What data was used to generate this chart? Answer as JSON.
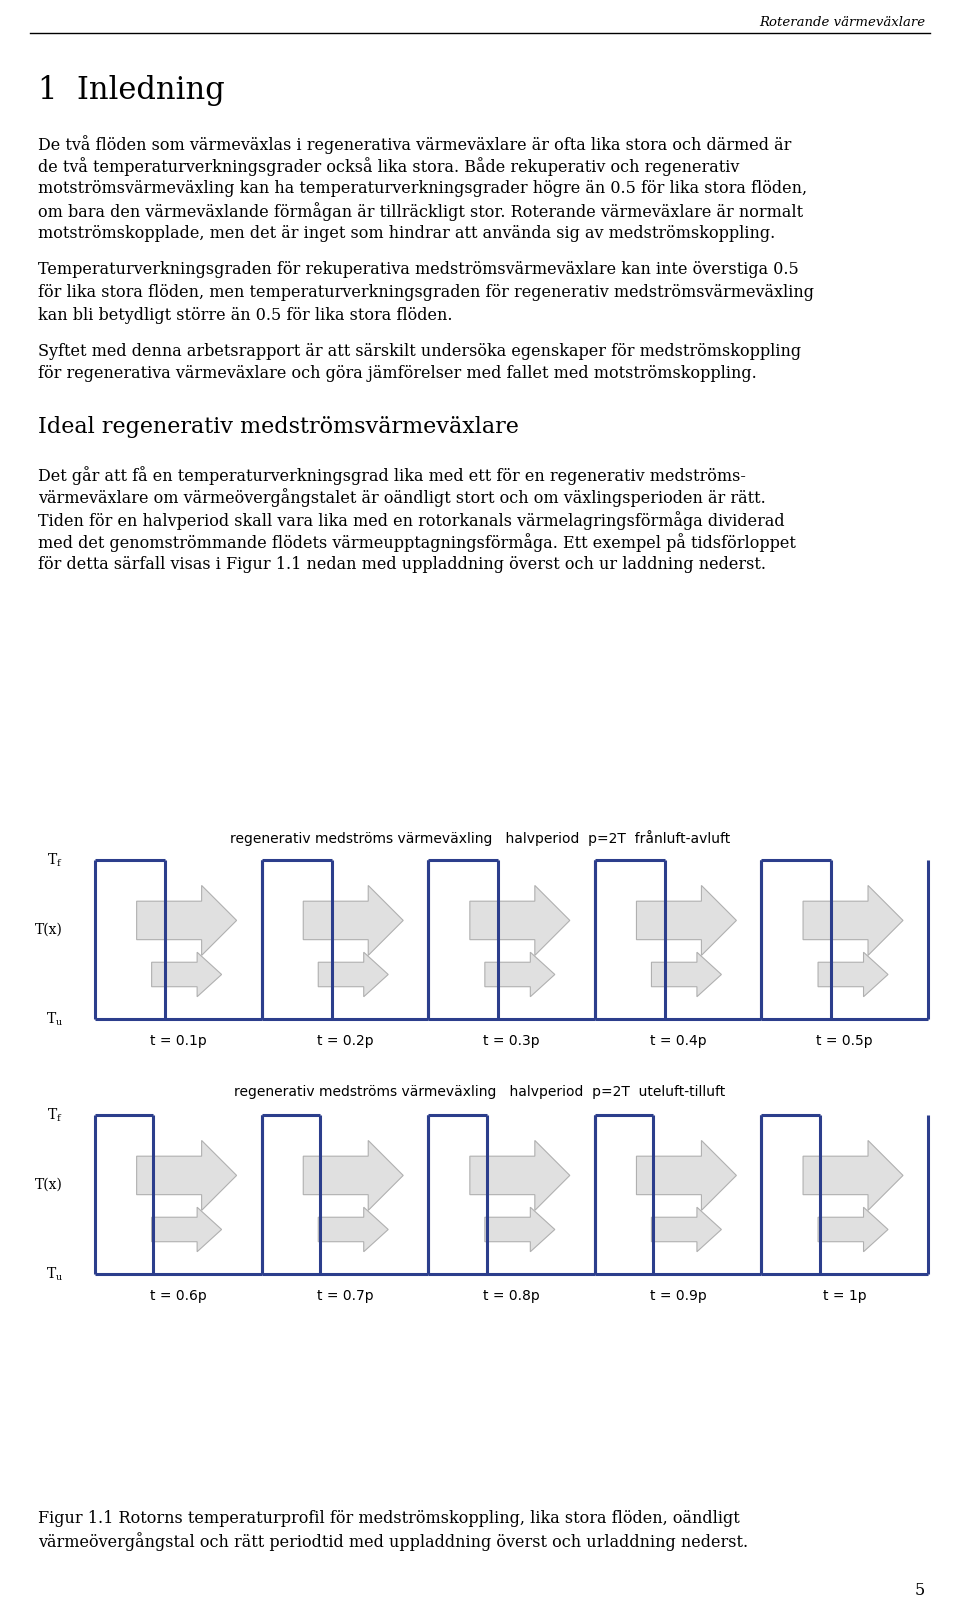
{
  "page_header_text": "Roterande värmeväxlare",
  "page_number": "5",
  "section_title": "1  Inledning",
  "para1_lines": [
    "De två flöden som värmeväxlas i regenerativa värmeväxlare är ofta lika stora och därmed är",
    "de två temperaturverkningsgrader också lika stora. Både rekuperativ och regenerativ",
    "motströmsvärmeväxling kan ha temperaturverkningsgrader högre än 0.5 för lika stora flöden,",
    "om bara den värmeväxlande förmågan är tillräckligt stor. Roterande värmeväxlare är normalt",
    "motströmskopplade, men det är inget som hindrar att använda sig av medströmskoppling."
  ],
  "para2_lines": [
    "Temperaturverkningsgraden för rekuperativa medströmsvärmeväxlare kan inte överstiga 0.5",
    "för lika stora flöden, men temperaturverkningsgraden för regenerativ medströmsvärmeväxling",
    "kan bli betydligt större än 0.5 för lika stora flöden."
  ],
  "para3_lines": [
    "Syftet med denna arbetsrapport är att särskilt undersöka egenskaper för medströmskoppling",
    "för regenerativa värmeväxlare och göra jämförelser med fallet med motströmskoppling."
  ],
  "subsection_title": "Ideal regenerativ medströmsvärmeväxlare",
  "para4_lines": [
    "Det går att få en temperaturverkningsgrad lika med ett för en regenerativ medströms-",
    "värmeväxlare om värmeövergångstalet är oändligt stort och om växlingsperioden är rätt.",
    "Tiden för en halvperiod skall vara lika med en rotorkanals värmelagringsförmåga dividerad",
    "med det genomströmmande flödets värmeupptagningsförmåga. Ett exempel på tidsförloppet",
    "för detta särfall visas i Figur 1.1 nedan med uppladdning överst och ur laddning nederst."
  ],
  "plot1_title": "regenerativ medströms värmeväxling   halvperiod  p=2T  frånluft-avluft",
  "plot2_title": "regenerativ medströms värmeväxling   halvperiod  p=2T  uteluft-tilluft",
  "plot1_xlabels": [
    "t = 0.1p",
    "t = 0.2p",
    "t = 0.3p",
    "t = 0.4p",
    "t = 0.5p"
  ],
  "plot2_xlabels": [
    "t = 0.6p",
    "t = 0.7p",
    "t = 0.8p",
    "t = 0.9p",
    "t = 1p"
  ],
  "fig_caption_lines": [
    "Figur 1.1 Rotorns temperaturprofil för medströmskoppling, lika stora flöden, oändligt",
    "värmeövergångstal och rätt periodtid med uppladdning överst och urladdning nederst."
  ],
  "blue_color": "#2c3e8c",
  "arrow_face_color": "#e0e0e0",
  "arrow_edge_color": "#b0b0b0",
  "bg_color": "#ffffff",
  "text_color": "#000000"
}
